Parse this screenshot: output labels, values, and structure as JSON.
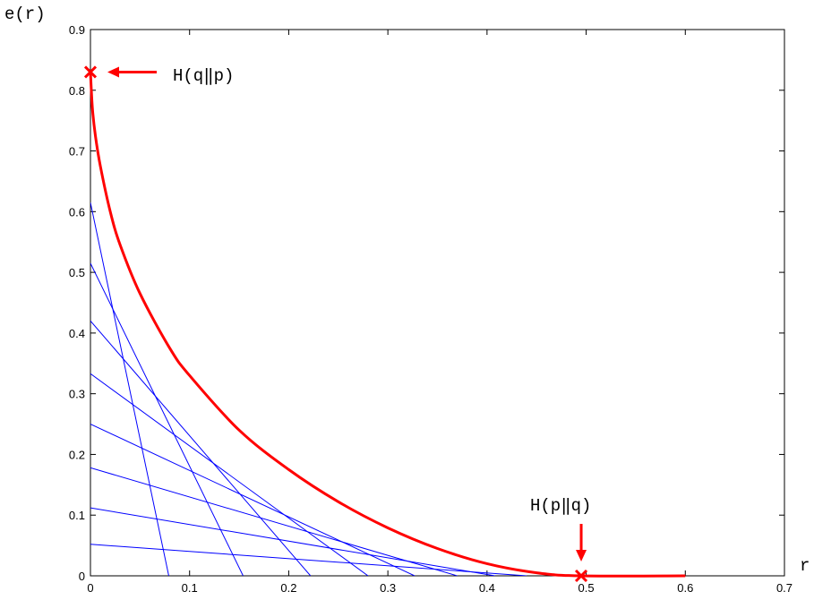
{
  "chart_data": {
    "type": "line",
    "title": "",
    "xlabel": "r",
    "ylabel": "e(r)",
    "xlim": [
      0,
      0.7
    ],
    "ylim": [
      0,
      0.9
    ],
    "xticks": [
      "0",
      "0.1",
      "0.2",
      "0.3",
      "0.4",
      "0.5",
      "0.6",
      "0.7"
    ],
    "yticks": [
      "0",
      "0.1",
      "0.2",
      "0.3",
      "0.4",
      "0.5",
      "0.6",
      "0.7",
      "0.8",
      "0.9"
    ],
    "grid": false,
    "colors": {
      "curve": "#ff0000",
      "tangents": "#0000ff"
    },
    "series": [
      {
        "style": "thick-red",
        "x": [
          0.0,
          0.002,
          0.005,
          0.01,
          0.02,
          0.03,
          0.05,
          0.08,
          0.1,
          0.15,
          0.2,
          0.25,
          0.3,
          0.35,
          0.4,
          0.45,
          0.495,
          0.6
        ],
        "y": [
          0.83,
          0.77,
          0.725,
          0.675,
          0.6,
          0.545,
          0.465,
          0.375,
          0.33,
          0.24,
          0.175,
          0.122,
          0.079,
          0.045,
          0.02,
          0.005,
          0.0,
          0.0
        ]
      }
    ],
    "tangent_lines": [
      {
        "y_intercept": 0.615,
        "x_intercept": 0.079
      },
      {
        "y_intercept": 0.515,
        "x_intercept": 0.154
      },
      {
        "y_intercept": 0.42,
        "x_intercept": 0.222
      },
      {
        "y_intercept": 0.333,
        "x_intercept": 0.28
      },
      {
        "y_intercept": 0.25,
        "x_intercept": 0.327
      },
      {
        "y_intercept": 0.178,
        "x_intercept": 0.37
      },
      {
        "y_intercept": 0.112,
        "x_intercept": 0.408
      },
      {
        "y_intercept": 0.052,
        "x_intercept": 0.44
      }
    ],
    "annotations": [
      {
        "text": "H(q‖p)",
        "x": 0.0,
        "y": 0.83,
        "marker": "x",
        "arrow": "left"
      },
      {
        "text": "H(p‖q)",
        "x": 0.495,
        "y": 0.0,
        "marker": "x",
        "arrow": "down"
      }
    ]
  }
}
